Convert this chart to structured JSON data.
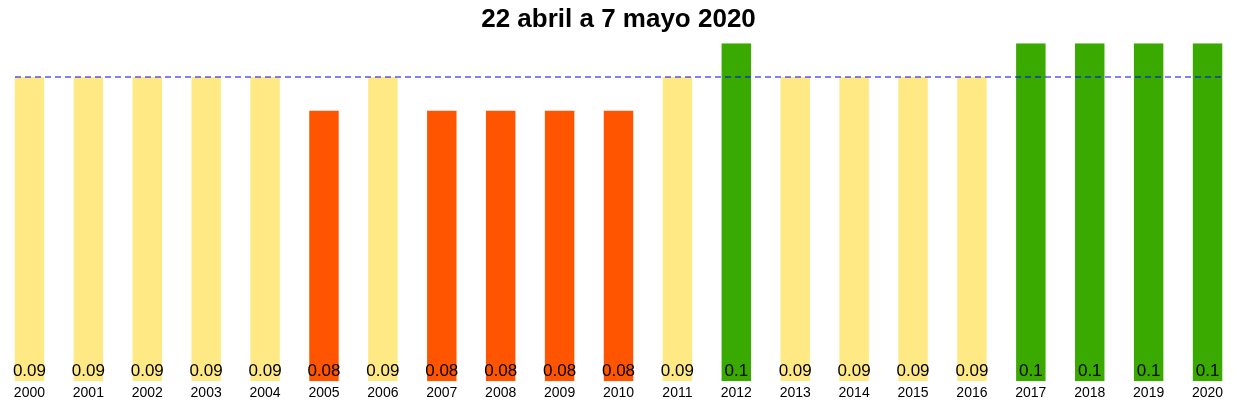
{
  "chart_data": {
    "type": "bar",
    "title": "22 abril a 7 mayo 2020",
    "categories": [
      "2000",
      "2001",
      "2002",
      "2003",
      "2004",
      "2005",
      "2006",
      "2007",
      "2008",
      "2009",
      "2010",
      "2011",
      "2012",
      "2013",
      "2014",
      "2015",
      "2016",
      "2017",
      "2018",
      "2019",
      "2020"
    ],
    "values": [
      0.09,
      0.09,
      0.09,
      0.09,
      0.09,
      0.08,
      0.09,
      0.08,
      0.08,
      0.08,
      0.08,
      0.09,
      0.1,
      0.09,
      0.09,
      0.09,
      0.09,
      0.1,
      0.1,
      0.1,
      0.1
    ],
    "colors": [
      "#ffe984",
      "#ffe984",
      "#ffe984",
      "#ffe984",
      "#ffe984",
      "#ff5500",
      "#ffe984",
      "#ff5500",
      "#ff5500",
      "#ff5500",
      "#ff5500",
      "#ffe984",
      "#3aaa00",
      "#ffe984",
      "#ffe984",
      "#ffe984",
      "#ffe984",
      "#3aaa00",
      "#3aaa00",
      "#3aaa00",
      "#3aaa00"
    ],
    "ref_lines": [
      {
        "axis": "y",
        "value": 0.09,
        "color": "#0000ff",
        "line_style": "dashed"
      }
    ],
    "data_labels": true,
    "grid": false,
    "legend": false
  }
}
